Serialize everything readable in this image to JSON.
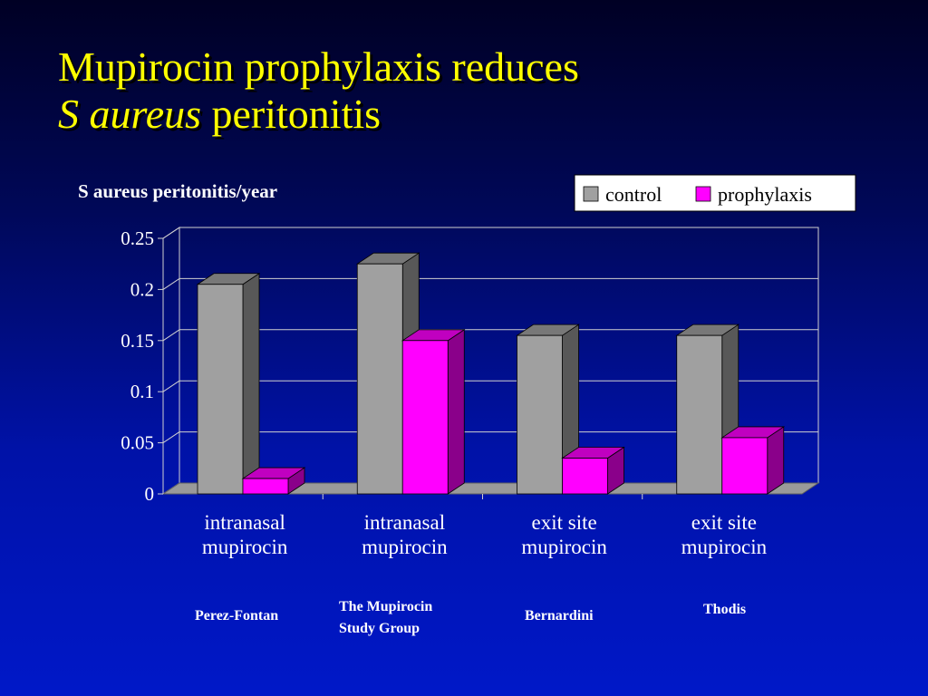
{
  "title": {
    "line1": "Mupirocin prophylaxis reduces",
    "line2_italic": "S aureus",
    "line2_rest": "peritonitis"
  },
  "chart_data": {
    "type": "bar",
    "ylabel": "S aureus peritonitis/year",
    "ylim": [
      0,
      0.25
    ],
    "yticks": [
      "0",
      "0.05",
      "0.1",
      "0.15",
      "0.2",
      "0.25"
    ],
    "categories": [
      [
        "intranasal",
        "mupirocin"
      ],
      [
        "intranasal",
        "mupirocin"
      ],
      [
        "exit site",
        "mupirocin"
      ],
      [
        "exit site",
        "mupirocin"
      ]
    ],
    "series": [
      {
        "name": "control",
        "values": [
          0.205,
          0.225,
          0.155,
          0.155
        ]
      },
      {
        "name": "prophylaxis",
        "values": [
          0.015,
          0.15,
          0.035,
          0.055
        ]
      }
    ],
    "legend_position": "top-right",
    "grid": true,
    "style": "3d-bar"
  },
  "colors": {
    "title": "#ffff00",
    "control_front": "#a0a0a0",
    "control_side": "#585858",
    "control_top": "#787878",
    "prophylaxis_front": "#ff00ff",
    "prophylaxis_side": "#8a008a",
    "prophylaxis_top": "#c000c0"
  },
  "sources": [
    [
      "Perez-Fontan"
    ],
    [
      "The Mupirocin",
      "Study Group"
    ],
    [
      "Bernardini"
    ],
    [
      "Thodis"
    ]
  ]
}
